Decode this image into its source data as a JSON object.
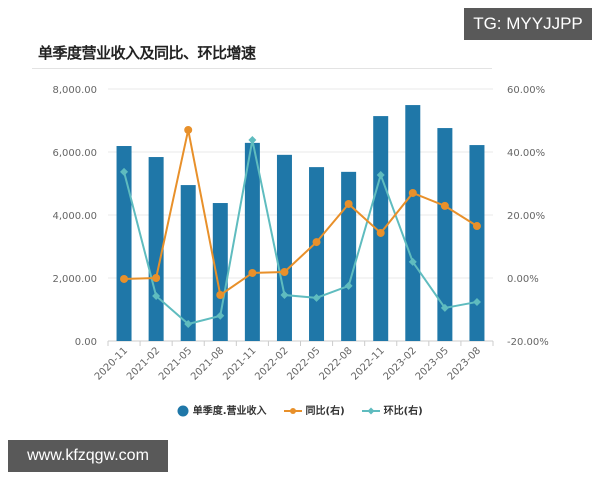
{
  "watermark_top": "TG: MYYJJPP",
  "watermark_bottom": "www.kfzqgw.com",
  "colors": {
    "bar": "#1f77a8",
    "yoy": "#e8902a",
    "qoq": "#5fbcbf",
    "grid": "#e8e8e8"
  },
  "chart_data": {
    "type": "bar",
    "title": "单季度营业收入及同比、环比增速",
    "categories": [
      "2020-11",
      "2021-02",
      "2021-05",
      "2021-08",
      "2021-11",
      "2022-02",
      "2022-05",
      "2022-08",
      "2022-11",
      "2023-02",
      "2023-05",
      "2023-08"
    ],
    "series": [
      {
        "name": "单季度.营业收入",
        "type": "bar",
        "axis": "left",
        "values": [
          6190,
          5840,
          4950,
          4380,
          6290,
          5910,
          5520,
          5370,
          7140,
          7490,
          6760,
          6220
        ]
      },
      {
        "name": "同比(右)",
        "type": "line",
        "axis": "right",
        "unit": "%",
        "values": [
          -0.3,
          0.0,
          47.0,
          -5.4,
          1.6,
          1.9,
          11.4,
          23.5,
          14.3,
          27.0,
          22.9,
          16.5
        ]
      },
      {
        "name": "环比(右)",
        "type": "line",
        "axis": "right",
        "unit": "%",
        "values": [
          33.7,
          -5.7,
          -14.6,
          -12.0,
          43.8,
          -5.4,
          -6.3,
          -2.5,
          32.7,
          5.1,
          -9.5,
          -7.6
        ]
      }
    ],
    "left_axis": {
      "ylim": [
        0,
        8000
      ],
      "ticks": [
        "0.00",
        "2,000.00",
        "4,000.00",
        "6,000.00",
        "8,000.00"
      ]
    },
    "right_axis": {
      "ylim": [
        -20,
        60
      ],
      "ticks": [
        "-20.00%",
        "0.00%",
        "20.00%",
        "40.00%",
        "60.00%"
      ]
    },
    "xlabel": "",
    "ylabel": "",
    "grid": true,
    "legend_position": "bottom"
  }
}
